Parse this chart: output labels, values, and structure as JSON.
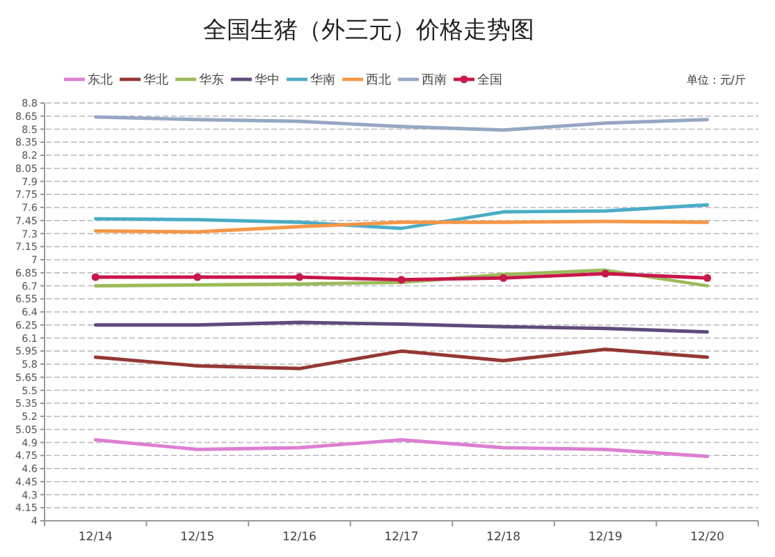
{
  "chart_data": {
    "type": "line",
    "title": "全国生猪（外三元）价格走势图",
    "ylabel": "单位：元/斤",
    "categories": [
      "12/14",
      "12/15",
      "12/16",
      "12/17",
      "12/18",
      "12/19",
      "12/20"
    ],
    "series": [
      {
        "name": "东北",
        "color": "#dd7fd2",
        "values": [
          4.93,
          4.82,
          4.84,
          4.93,
          4.84,
          4.82,
          4.74
        ]
      },
      {
        "name": "华北",
        "color": "#953735",
        "values": [
          5.88,
          5.78,
          5.75,
          5.95,
          5.84,
          5.97,
          5.88
        ]
      },
      {
        "name": "华东",
        "color": "#9bbb59",
        "values": [
          6.7,
          6.71,
          6.72,
          6.74,
          6.83,
          6.88,
          6.7
        ]
      },
      {
        "name": "华中",
        "color": "#604a7b",
        "values": [
          6.25,
          6.25,
          6.28,
          6.26,
          6.23,
          6.21,
          6.17
        ]
      },
      {
        "name": "华南",
        "color": "#4bacc6",
        "values": [
          7.47,
          7.46,
          7.43,
          7.36,
          7.55,
          7.56,
          7.63
        ]
      },
      {
        "name": "西北",
        "color": "#f79646",
        "values": [
          7.33,
          7.32,
          7.38,
          7.43,
          7.43,
          7.44,
          7.43
        ]
      },
      {
        "name": "西南",
        "color": "#95a7c4",
        "values": [
          8.64,
          8.61,
          8.59,
          8.53,
          8.49,
          8.57,
          8.61
        ]
      },
      {
        "name": "全国",
        "color": "#c8174a",
        "marker": "circle",
        "values": [
          6.8,
          6.8,
          6.8,
          6.77,
          6.79,
          6.84,
          6.79
        ]
      }
    ],
    "ylim": [
      4,
      8.8
    ],
    "yticks": [
      4,
      4.15,
      4.3,
      4.45,
      4.6,
      4.75,
      4.9,
      5.05,
      5.2,
      5.35,
      5.5,
      5.65,
      5.8,
      5.95,
      6.1,
      6.25,
      6.4,
      6.55,
      6.7,
      6.85,
      7,
      7.15,
      7.3,
      7.45,
      7.6,
      7.75,
      7.9,
      8.05,
      8.2,
      8.35,
      8.5,
      8.65,
      8.8
    ],
    "grid": "y",
    "legend": "top"
  }
}
